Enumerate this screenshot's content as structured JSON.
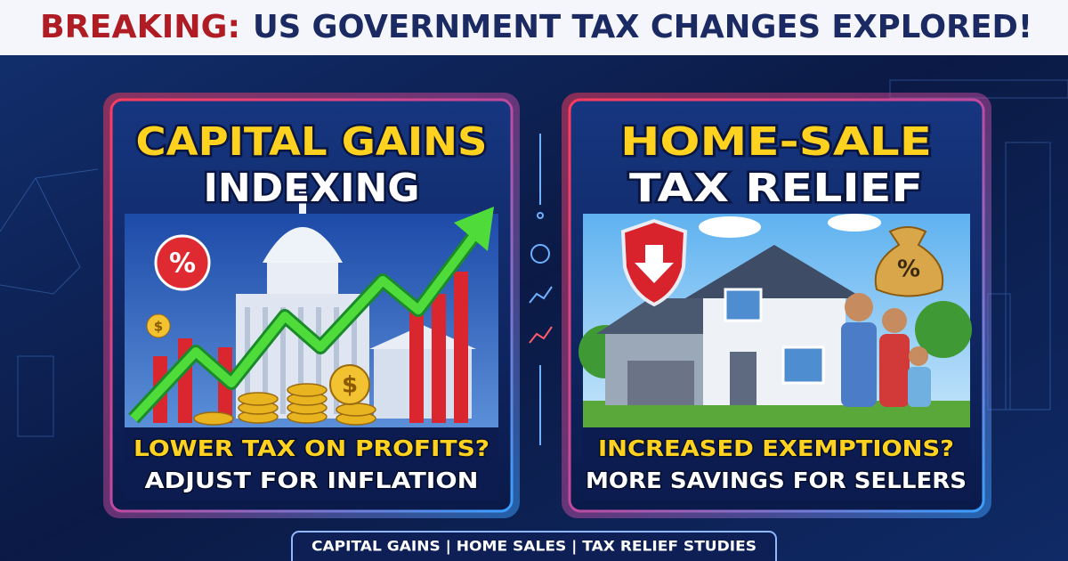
{
  "header": {
    "label": "BREAKING:",
    "title": "US GOVERNMENT TAX CHANGES EXPLORED!"
  },
  "panels": [
    {
      "title_lines": [
        "CAPITAL GAINS",
        "INDEXING"
      ],
      "subtitle_lines": [
        "LOWER TAX ON PROFITS?",
        "ADJUST FOR INFLATION"
      ],
      "icons": [
        "%",
        "$",
        "$"
      ]
    },
    {
      "title_lines": [
        "HOME-SALE",
        "TAX RELIEF"
      ],
      "subtitle_lines": [
        "INCREASED EXEMPTIONS?",
        "MORE SAVINGS FOR SELLERS"
      ],
      "icons": [
        "%"
      ]
    }
  ],
  "footer": "CAPITAL GAINS | HOME SALES | TAX RELIEF STUDIES"
}
